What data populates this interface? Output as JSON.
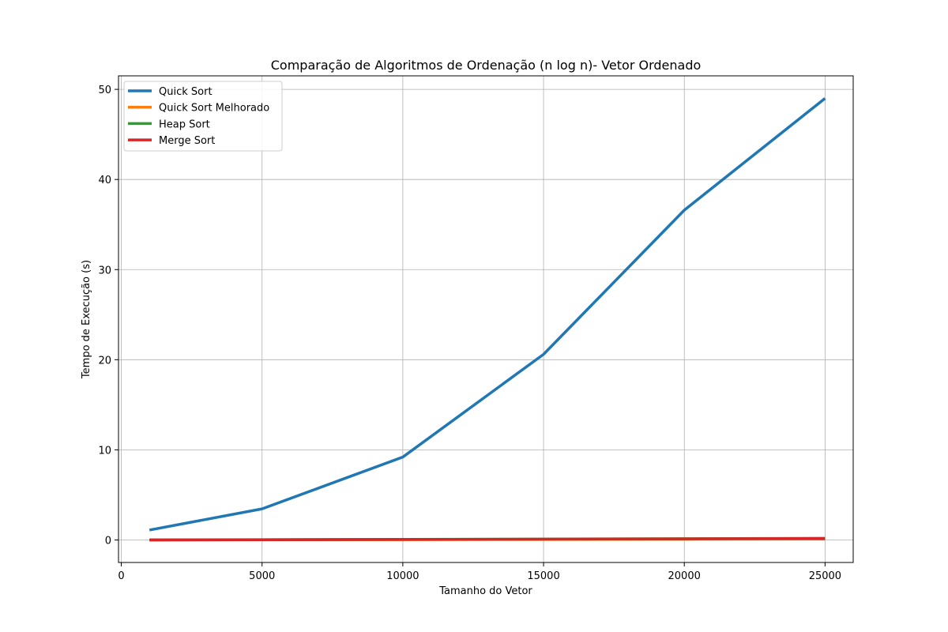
{
  "chart_data": {
    "type": "line",
    "title": "Comparação de Algoritmos de Ordenação (n log n)- Vetor Ordenado",
    "xlabel": "Tamanho do Vetor",
    "ylabel": "Tempo de Execução (s)",
    "x": [
      1000,
      5000,
      10000,
      15000,
      20000,
      25000
    ],
    "xlim": [
      -100,
      26000
    ],
    "ylim": [
      -2.5,
      51.5
    ],
    "xticks": [
      0,
      5000,
      10000,
      15000,
      20000,
      25000
    ],
    "yticks": [
      0,
      10,
      20,
      30,
      40,
      50
    ],
    "grid": true,
    "legend_position": "upper-left",
    "series": [
      {
        "name": "Quick Sort",
        "color": "#1f77b4",
        "values": [
          1.1,
          3.45,
          9.2,
          20.6,
          36.6,
          49.0
        ]
      },
      {
        "name": "Quick Sort Melhorado",
        "color": "#ff7f0e",
        "values": [
          0.003,
          0.017,
          0.036,
          0.057,
          0.079,
          0.1
        ]
      },
      {
        "name": "Heap Sort",
        "color": "#2ca02c",
        "values": [
          0.005,
          0.03,
          0.065,
          0.1,
          0.14,
          0.18
        ]
      },
      {
        "name": "Merge Sort",
        "color": "#d62728",
        "values": [
          0.004,
          0.025,
          0.055,
          0.09,
          0.12,
          0.155
        ]
      }
    ]
  }
}
